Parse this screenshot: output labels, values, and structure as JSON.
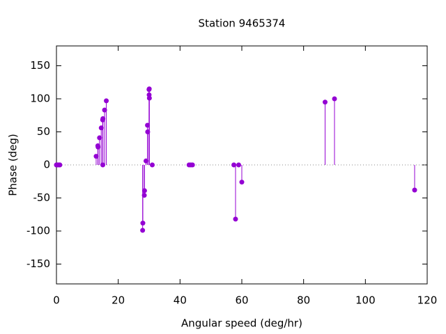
{
  "chart_data": {
    "type": "stem",
    "title": "Station 9465374",
    "x_label": "Angular speed (deg/hr)",
    "y_label": "Phase (deg)",
    "color": "#9400d3",
    "zeroaxis": true,
    "x": [
      0,
      0.041,
      0.082,
      0.544,
      1.016,
      1.098,
      12.854,
      13.399,
      13.471,
      13.943,
      14.497,
      14.959,
      15.0,
      15.041,
      15.585,
      16.139,
      27.895,
      27.968,
      28.44,
      28.513,
      28.984,
      29.456,
      29.528,
      29.959,
      30.0,
      30.041,
      30.082,
      31.016,
      42.927,
      43.476,
      44.025,
      57.424,
      57.968,
      58.984,
      60.0,
      86.952,
      90.0,
      115.936
    ],
    "values": [
      0,
      0,
      0,
      0,
      0,
      0,
      13,
      29,
      27,
      41,
      56,
      68,
      0,
      70,
      83,
      97,
      -99,
      -88,
      -46,
      -39,
      6,
      60,
      50,
      114,
      106,
      115,
      101,
      0,
      0,
      0,
      0,
      0,
      -82,
      0,
      -26,
      95,
      100,
      -38
    ],
    "xlim": [
      0,
      120
    ],
    "ylim": [
      -180,
      180
    ],
    "xticks": [
      0,
      20,
      40,
      60,
      80,
      100,
      120
    ],
    "yticks": [
      -150,
      -100,
      -50,
      0,
      50,
      100,
      150
    ]
  }
}
